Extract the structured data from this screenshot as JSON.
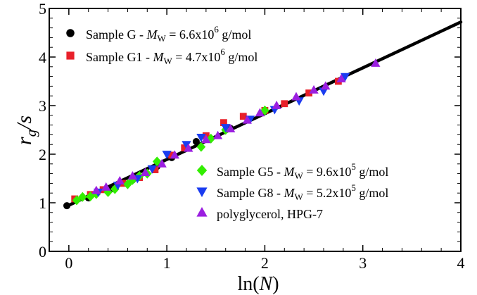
{
  "chart_data": {
    "type": "scatter",
    "title": "",
    "xlabel": "ln(N)",
    "ylabel": "rg/s",
    "xlim": [
      -0.2,
      4
    ],
    "ylim": [
      0,
      5
    ],
    "x_ticks": [
      0,
      1,
      2,
      3,
      4
    ],
    "y_ticks": [
      0,
      1,
      2,
      3,
      4,
      5
    ],
    "grid": false,
    "fit_line": {
      "x": [
        -0.02,
        4.0
      ],
      "y": [
        0.93,
        4.72
      ],
      "color": "#000000"
    },
    "series": [
      {
        "name": "Sample G - M_W = 6.6x10^6 g/mol",
        "label": {
          "text": "Sample G - ",
          "var": "M",
          "sub": "W",
          "mid": " = 6.6x10",
          "sup": "6",
          "tail": " g/mol"
        },
        "marker": "circle",
        "color": "#000000",
        "points": [
          [
            -0.02,
            0.94
          ],
          [
            0.2,
            1.1
          ],
          [
            0.42,
            1.27
          ],
          [
            0.65,
            1.47
          ],
          [
            0.9,
            1.75
          ],
          [
            1.05,
            1.93
          ],
          [
            1.3,
            2.26
          ],
          [
            1.65,
            2.53
          ]
        ]
      },
      {
        "name": "Sample G1 - M_W = 4.7x10^6 g/mol",
        "label": {
          "text": "Sample G1 - ",
          "var": "M",
          "sub": "W",
          "mid": " = 4.7x10",
          "sup": "6",
          "tail": " g/mol"
        },
        "marker": "square",
        "color": "#e8202a",
        "points": [
          [
            0.06,
            1.08
          ],
          [
            0.22,
            1.17
          ],
          [
            0.35,
            1.27
          ],
          [
            0.55,
            1.4
          ],
          [
            0.72,
            1.52
          ],
          [
            0.88,
            1.68
          ],
          [
            1.05,
            1.98
          ],
          [
            1.18,
            2.13
          ],
          [
            1.4,
            2.38
          ],
          [
            1.58,
            2.65
          ],
          [
            1.78,
            2.78
          ],
          [
            2.0,
            2.9
          ],
          [
            2.2,
            3.04
          ],
          [
            2.45,
            3.26
          ],
          [
            2.75,
            3.5
          ]
        ]
      },
      {
        "name": "Sample G5 - M_W = 9.6x10^5 g/mol",
        "label": {
          "text": "Sample G5 - ",
          "var": "M",
          "sub": "W",
          "mid": " = 9.6x10",
          "sup": "5",
          "tail": " g/mol"
        },
        "marker": "diamond",
        "color": "#33ee00",
        "points": [
          [
            0.08,
            1.05
          ],
          [
            0.14,
            1.12
          ],
          [
            0.22,
            1.13
          ],
          [
            0.28,
            1.18
          ],
          [
            0.4,
            1.22
          ],
          [
            0.47,
            1.28
          ],
          [
            0.6,
            1.38
          ],
          [
            0.65,
            1.47
          ],
          [
            0.72,
            1.55
          ],
          [
            0.8,
            1.6
          ],
          [
            0.9,
            1.85
          ],
          [
            1.35,
            2.15
          ],
          [
            1.45,
            2.32
          ],
          [
            1.6,
            2.5
          ],
          [
            2.0,
            2.9
          ]
        ]
      },
      {
        "name": "Sample G8 - M_W = 5.2x10^5 g/mol",
        "label": {
          "text": "Sample G8 - ",
          "var": "M",
          "sub": "W",
          "mid": " = 5.2x10",
          "sup": "5",
          "tail": " g/mol"
        },
        "marker": "triangle-down",
        "color": "#1a3cf0",
        "points": [
          [
            0.3,
            1.22
          ],
          [
            0.5,
            1.36
          ],
          [
            0.7,
            1.5
          ],
          [
            0.85,
            1.7
          ],
          [
            1.0,
            2.0
          ],
          [
            1.2,
            2.2
          ],
          [
            1.35,
            2.35
          ],
          [
            1.6,
            2.55
          ],
          [
            1.85,
            2.72
          ],
          [
            2.1,
            2.92
          ],
          [
            2.35,
            3.1
          ],
          [
            2.6,
            3.3
          ],
          [
            2.82,
            3.6
          ]
        ]
      },
      {
        "name": "polyglycerol, HPG-7",
        "label": {
          "text": "polyglycerol, HPG-7"
        },
        "marker": "triangle-up",
        "color": "#9b1fe0",
        "points": [
          [
            0.28,
            1.25
          ],
          [
            0.38,
            1.32
          ],
          [
            0.52,
            1.45
          ],
          [
            0.65,
            1.55
          ],
          [
            0.78,
            1.62
          ],
          [
            0.95,
            1.8
          ],
          [
            1.08,
            1.98
          ],
          [
            1.22,
            2.12
          ],
          [
            1.4,
            2.3
          ],
          [
            1.52,
            2.38
          ],
          [
            1.65,
            2.52
          ],
          [
            1.82,
            2.7
          ],
          [
            1.95,
            2.85
          ],
          [
            2.12,
            3.0
          ],
          [
            2.32,
            3.18
          ],
          [
            2.5,
            3.32
          ],
          [
            2.62,
            3.4
          ],
          [
            2.78,
            3.55
          ],
          [
            3.13,
            3.87
          ]
        ]
      }
    ]
  }
}
